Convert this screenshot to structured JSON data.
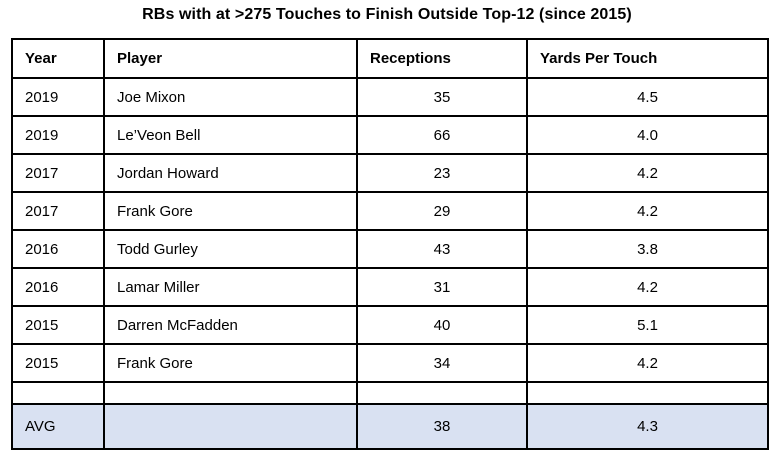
{
  "title": "RBs with at >275 Touches to Finish Outside Top-12 (since 2015)",
  "table": {
    "columns": [
      "Year",
      "Player",
      "Receptions",
      "Yards Per Touch"
    ],
    "rows": [
      {
        "year": "2019",
        "player": "Joe Mixon",
        "receptions": "35",
        "ypt": "4.5"
      },
      {
        "year": "2019",
        "player": "Le’Veon Bell",
        "receptions": "66",
        "ypt": "4.0"
      },
      {
        "year": "2017",
        "player": "Jordan Howard",
        "receptions": "23",
        "ypt": "4.2"
      },
      {
        "year": "2017",
        "player": "Frank Gore",
        "receptions": "29",
        "ypt": "4.2"
      },
      {
        "year": "2016",
        "player": "Todd Gurley",
        "receptions": "43",
        "ypt": "3.8"
      },
      {
        "year": "2016",
        "player": "Lamar Miller",
        "receptions": "31",
        "ypt": "4.2"
      },
      {
        "year": "2015",
        "player": "Darren McFadden",
        "receptions": "40",
        "ypt": "5.1"
      },
      {
        "year": "2015",
        "player": "Frank Gore",
        "receptions": "34",
        "ypt": "4.2"
      }
    ],
    "avg_row": {
      "label": "AVG",
      "player": "",
      "receptions": "38",
      "ypt": "4.3"
    },
    "colors": {
      "avg_row_background": "#d9e1f2",
      "border": "#000000",
      "text": "#000000"
    }
  }
}
